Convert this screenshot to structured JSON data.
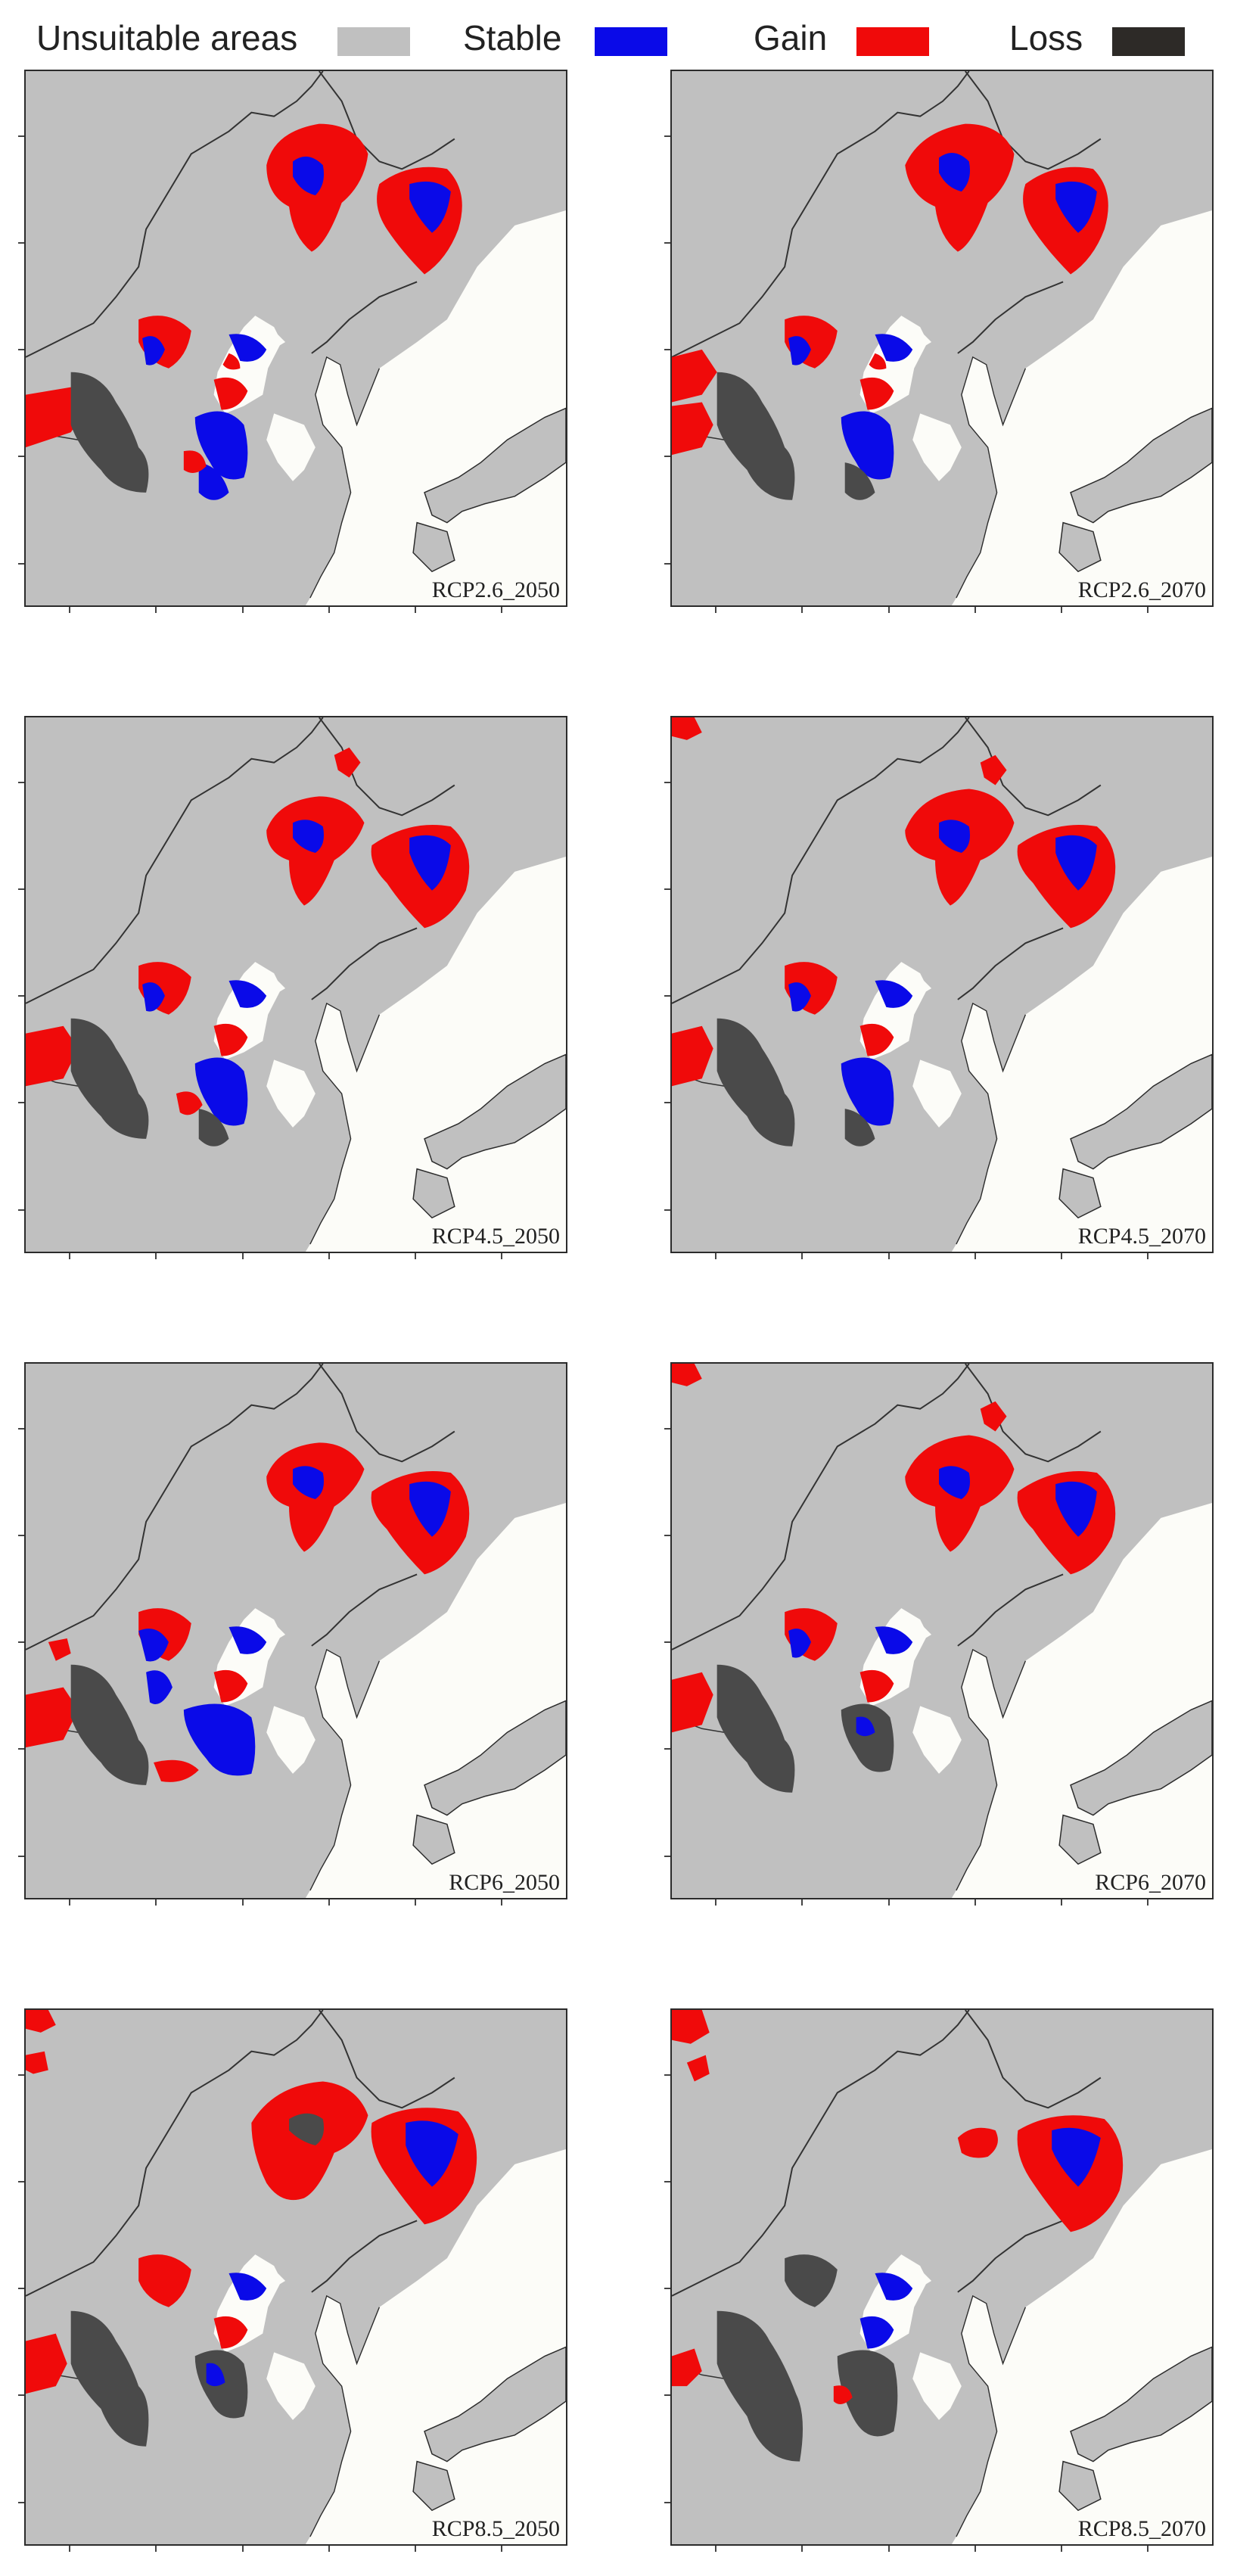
{
  "legend": {
    "items": [
      {
        "label": "Unsuitable areas",
        "color": "#c0c0c0"
      },
      {
        "label": "Stable",
        "color": "#0a0ae8"
      },
      {
        "label": "Gain",
        "color": "#f00a0a"
      },
      {
        "label": "Loss",
        "color": "#2d2a27"
      }
    ]
  },
  "colors": {
    "land": "#c0c0c0",
    "sea": "#fcfcf8",
    "stable": "#0a0ae8",
    "gain": "#f00a0a",
    "loss": "#4a4a4a",
    "border": "#2b2b2b"
  },
  "panels": [
    {
      "label": "RCP2.6_2050"
    },
    {
      "label": "RCP2.6_2070"
    },
    {
      "label": "RCP4.5_2050"
    },
    {
      "label": "RCP4.5_2070"
    },
    {
      "label": "RCP6_2050"
    },
    {
      "label": "RCP6_2070"
    },
    {
      "label": "RCP8.5_2050"
    },
    {
      "label": "RCP8.5_2070"
    }
  ]
}
